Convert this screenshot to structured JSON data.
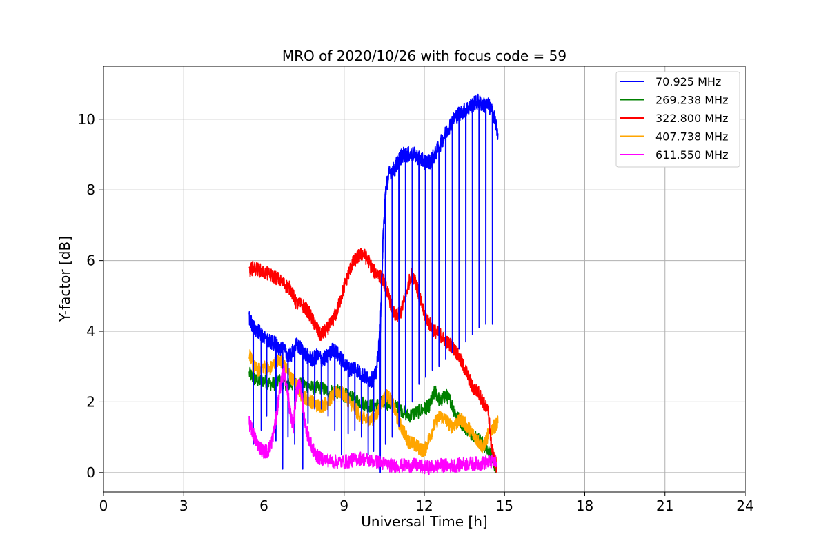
{
  "chart_data": {
    "type": "line",
    "title": "MRO of 2020/10/26 with focus code = 59",
    "xlabel": "Universal Time [h]",
    "ylabel": "Y-factor [dB]",
    "xlim": [
      0,
      24
    ],
    "ylim": [
      -0.55,
      11.5
    ],
    "xticks": [
      0,
      3,
      6,
      9,
      12,
      15,
      18,
      21,
      24
    ],
    "yticks": [
      0,
      2,
      4,
      6,
      8,
      10
    ],
    "grid": true,
    "legend_position": "top-right",
    "series": [
      {
        "name": " 70.925 MHz",
        "color": "#0000ff",
        "points": [
          [
            5.45,
            4.4
          ],
          [
            5.6,
            4.1
          ],
          [
            5.8,
            4.0
          ],
          [
            6.0,
            3.8
          ],
          [
            6.2,
            3.7
          ],
          [
            6.5,
            3.6
          ],
          [
            6.8,
            3.4
          ],
          [
            7.0,
            3.3
          ],
          [
            7.2,
            3.6
          ],
          [
            7.4,
            3.5
          ],
          [
            7.6,
            3.3
          ],
          [
            7.8,
            3.2
          ],
          [
            8.0,
            3.3
          ],
          [
            8.2,
            3.2
          ],
          [
            8.4,
            3.3
          ],
          [
            8.6,
            3.5
          ],
          [
            8.8,
            3.3
          ],
          [
            9.0,
            3.1
          ],
          [
            9.2,
            2.9
          ],
          [
            9.4,
            3.0
          ],
          [
            9.6,
            2.8
          ],
          [
            9.8,
            2.7
          ],
          [
            10.0,
            2.6
          ],
          [
            10.2,
            2.8
          ],
          [
            10.35,
            4.0
          ],
          [
            10.45,
            6.5
          ],
          [
            10.55,
            8.0
          ],
          [
            10.7,
            8.5
          ],
          [
            10.9,
            8.6
          ],
          [
            11.0,
            8.8
          ],
          [
            11.2,
            9.0
          ],
          [
            11.4,
            9.0
          ],
          [
            11.6,
            9.0
          ],
          [
            11.8,
            8.9
          ],
          [
            12.0,
            8.8
          ],
          [
            12.2,
            8.8
          ],
          [
            12.4,
            9.0
          ],
          [
            12.6,
            9.3
          ],
          [
            12.8,
            9.6
          ],
          [
            13.0,
            9.9
          ],
          [
            13.2,
            10.1
          ],
          [
            13.4,
            10.2
          ],
          [
            13.6,
            10.3
          ],
          [
            13.8,
            10.4
          ],
          [
            14.0,
            10.5
          ],
          [
            14.2,
            10.4
          ],
          [
            14.4,
            10.4
          ],
          [
            14.6,
            10.1
          ],
          [
            14.75,
            9.6
          ]
        ],
        "dips": [
          [
            5.6,
            0.8
          ],
          [
            5.9,
            1.2
          ],
          [
            6.1,
            1.6
          ],
          [
            6.45,
            0.9
          ],
          [
            6.7,
            0.1
          ],
          [
            6.9,
            1.0
          ],
          [
            7.15,
            0.8
          ],
          [
            7.45,
            0.1
          ],
          [
            7.65,
            1.4
          ],
          [
            7.9,
            1.8
          ],
          [
            8.15,
            1.8
          ],
          [
            8.4,
            1.6
          ],
          [
            8.65,
            1.2
          ],
          [
            8.9,
            0.5
          ],
          [
            9.15,
            1.1
          ],
          [
            9.4,
            1.2
          ],
          [
            9.65,
            1.0
          ],
          [
            9.9,
            0.5
          ],
          [
            10.1,
            0.6
          ],
          [
            10.35,
            0.0
          ],
          [
            10.55,
            0.8
          ],
          [
            10.8,
            1.0
          ],
          [
            11.05,
            1.3
          ],
          [
            11.3,
            1.7
          ],
          [
            11.55,
            2.0
          ],
          [
            11.8,
            2.5
          ],
          [
            12.05,
            2.7
          ],
          [
            12.3,
            2.9
          ],
          [
            12.55,
            3.0
          ],
          [
            12.8,
            3.2
          ],
          [
            13.05,
            3.4
          ],
          [
            13.3,
            3.5
          ],
          [
            13.55,
            3.7
          ],
          [
            13.8,
            3.9
          ],
          [
            14.05,
            4.1
          ],
          [
            14.3,
            4.2
          ],
          [
            14.55,
            4.2
          ]
        ]
      },
      {
        "name": "269.238 MHz",
        "color": "#008000",
        "points": [
          [
            5.45,
            2.8
          ],
          [
            5.7,
            2.6
          ],
          [
            6.0,
            2.6
          ],
          [
            6.3,
            2.5
          ],
          [
            6.6,
            2.6
          ],
          [
            6.9,
            2.5
          ],
          [
            7.2,
            2.5
          ],
          [
            7.5,
            2.5
          ],
          [
            7.8,
            2.4
          ],
          [
            8.1,
            2.4
          ],
          [
            8.4,
            2.3
          ],
          [
            8.7,
            2.3
          ],
          [
            9.0,
            2.2
          ],
          [
            9.3,
            2.1
          ],
          [
            9.6,
            2.0
          ],
          [
            9.9,
            1.9
          ],
          [
            10.2,
            1.9
          ],
          [
            10.5,
            2.0
          ],
          [
            10.8,
            1.9
          ],
          [
            11.1,
            1.8
          ],
          [
            11.4,
            1.6
          ],
          [
            11.7,
            1.7
          ],
          [
            12.0,
            1.8
          ],
          [
            12.2,
            1.9
          ],
          [
            12.4,
            2.3
          ],
          [
            12.6,
            2.0
          ],
          [
            12.8,
            2.2
          ],
          [
            13.0,
            2.0
          ],
          [
            13.2,
            1.6
          ],
          [
            13.5,
            1.3
          ],
          [
            13.8,
            1.1
          ],
          [
            14.1,
            0.9
          ],
          [
            14.4,
            0.6
          ],
          [
            14.6,
            0.3
          ],
          [
            14.7,
            0.1
          ]
        ]
      },
      {
        "name": "322.800 MHz",
        "color": "#ff0000",
        "points": [
          [
            5.45,
            5.7
          ],
          [
            5.6,
            5.8
          ],
          [
            5.9,
            5.7
          ],
          [
            6.2,
            5.6
          ],
          [
            6.5,
            5.5
          ],
          [
            6.8,
            5.3
          ],
          [
            7.0,
            5.2
          ],
          [
            7.2,
            4.8
          ],
          [
            7.5,
            4.7
          ],
          [
            7.7,
            4.5
          ],
          [
            7.9,
            4.2
          ],
          [
            8.1,
            3.9
          ],
          [
            8.3,
            4.0
          ],
          [
            8.5,
            4.2
          ],
          [
            8.7,
            4.5
          ],
          [
            8.9,
            5.0
          ],
          [
            9.1,
            5.5
          ],
          [
            9.3,
            5.9
          ],
          [
            9.5,
            6.1
          ],
          [
            9.7,
            6.2
          ],
          [
            9.9,
            6.0
          ],
          [
            10.1,
            5.7
          ],
          [
            10.3,
            5.6
          ],
          [
            10.5,
            5.4
          ],
          [
            10.7,
            4.9
          ],
          [
            10.9,
            4.4
          ],
          [
            11.1,
            4.5
          ],
          [
            11.3,
            5.0
          ],
          [
            11.5,
            5.6
          ],
          [
            11.65,
            5.5
          ],
          [
            11.8,
            5.0
          ],
          [
            12.0,
            4.5
          ],
          [
            12.2,
            4.2
          ],
          [
            12.4,
            4.0
          ],
          [
            12.6,
            3.9
          ],
          [
            12.8,
            3.7
          ],
          [
            13.0,
            3.6
          ],
          [
            13.2,
            3.4
          ],
          [
            13.4,
            3.1
          ],
          [
            13.6,
            2.8
          ],
          [
            13.8,
            2.4
          ],
          [
            14.0,
            2.3
          ],
          [
            14.2,
            2.0
          ],
          [
            14.4,
            1.7
          ],
          [
            14.5,
            0.8
          ],
          [
            14.6,
            0.4
          ],
          [
            14.7,
            0.2
          ]
        ]
      },
      {
        "name": "407.738 MHz",
        "color": "#ffa500",
        "points": [
          [
            5.45,
            3.4
          ],
          [
            5.6,
            3.0
          ],
          [
            5.8,
            2.9
          ],
          [
            6.0,
            3.0
          ],
          [
            6.2,
            2.9
          ],
          [
            6.4,
            3.1
          ],
          [
            6.6,
            3.2
          ],
          [
            6.8,
            3.0
          ],
          [
            7.0,
            2.7
          ],
          [
            7.2,
            2.5
          ],
          [
            7.4,
            2.2
          ],
          [
            7.6,
            2.1
          ],
          [
            7.8,
            2.0
          ],
          [
            8.0,
            1.9
          ],
          [
            8.2,
            1.9
          ],
          [
            8.4,
            2.0
          ],
          [
            8.6,
            2.2
          ],
          [
            8.8,
            2.3
          ],
          [
            9.0,
            2.2
          ],
          [
            9.2,
            2.0
          ],
          [
            9.4,
            1.8
          ],
          [
            9.6,
            1.6
          ],
          [
            9.8,
            1.5
          ],
          [
            10.0,
            1.5
          ],
          [
            10.2,
            1.6
          ],
          [
            10.4,
            2.0
          ],
          [
            10.6,
            2.2
          ],
          [
            10.8,
            2.0
          ],
          [
            11.0,
            1.5
          ],
          [
            11.2,
            1.2
          ],
          [
            11.4,
            0.9
          ],
          [
            11.6,
            0.8
          ],
          [
            11.8,
            0.7
          ],
          [
            12.0,
            0.6
          ],
          [
            12.2,
            1.0
          ],
          [
            12.4,
            1.4
          ],
          [
            12.6,
            1.6
          ],
          [
            12.8,
            1.5
          ],
          [
            13.0,
            1.3
          ],
          [
            13.2,
            1.4
          ],
          [
            13.4,
            1.5
          ],
          [
            13.6,
            1.3
          ],
          [
            13.8,
            1.1
          ],
          [
            14.0,
            0.9
          ],
          [
            14.2,
            0.7
          ],
          [
            14.4,
            1.1
          ],
          [
            14.6,
            1.3
          ],
          [
            14.75,
            1.4
          ]
        ]
      },
      {
        "name": "611.550 MHz",
        "color": "#ff00ff",
        "points": [
          [
            5.45,
            1.4
          ],
          [
            5.55,
            1.2
          ],
          [
            5.7,
            0.9
          ],
          [
            5.85,
            0.7
          ],
          [
            6.0,
            0.6
          ],
          [
            6.15,
            0.6
          ],
          [
            6.3,
            0.9
          ],
          [
            6.45,
            1.5
          ],
          [
            6.6,
            2.4
          ],
          [
            6.75,
            2.9
          ],
          [
            6.9,
            2.2
          ],
          [
            7.0,
            1.6
          ],
          [
            7.1,
            1.3
          ],
          [
            7.2,
            2.2
          ],
          [
            7.35,
            2.6
          ],
          [
            7.5,
            1.6
          ],
          [
            7.65,
            1.0
          ],
          [
            7.8,
            0.7
          ],
          [
            7.95,
            0.5
          ],
          [
            8.1,
            0.4
          ],
          [
            8.4,
            0.35
          ],
          [
            8.7,
            0.3
          ],
          [
            9.0,
            0.3
          ],
          [
            9.3,
            0.35
          ],
          [
            9.6,
            0.4
          ],
          [
            9.9,
            0.35
          ],
          [
            10.2,
            0.3
          ],
          [
            10.5,
            0.25
          ],
          [
            10.8,
            0.2
          ],
          [
            11.1,
            0.2
          ],
          [
            11.4,
            0.2
          ],
          [
            11.7,
            0.2
          ],
          [
            12.0,
            0.15
          ],
          [
            12.3,
            0.15
          ],
          [
            12.6,
            0.2
          ],
          [
            12.9,
            0.2
          ],
          [
            13.2,
            0.2
          ],
          [
            13.5,
            0.25
          ],
          [
            13.8,
            0.25
          ],
          [
            14.1,
            0.25
          ],
          [
            14.4,
            0.3
          ],
          [
            14.7,
            0.3
          ]
        ]
      }
    ]
  }
}
